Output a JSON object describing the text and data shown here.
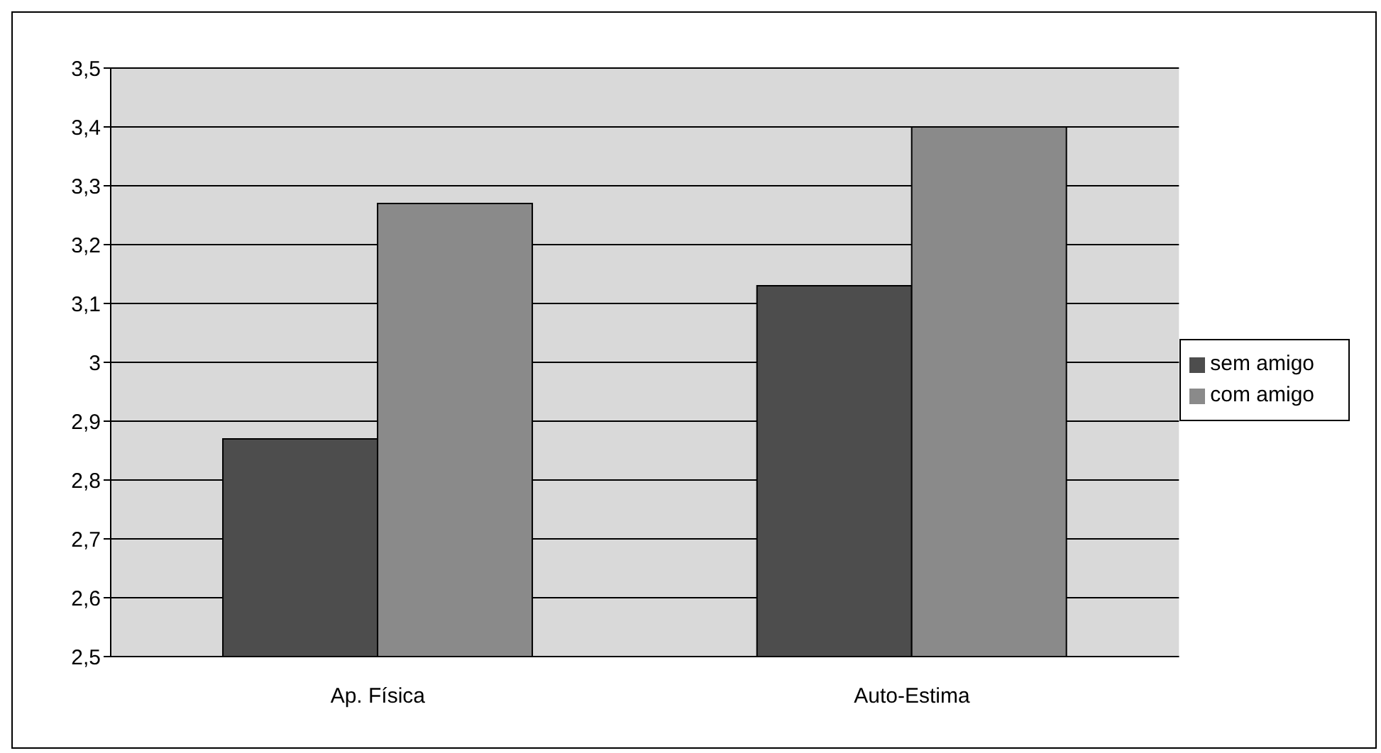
{
  "chart_data": {
    "type": "bar",
    "categories": [
      "Ap. Física",
      "Auto-Estima"
    ],
    "series": [
      {
        "name": "sem amigo",
        "color": "#4d4d4d",
        "values": [
          2.87,
          3.13
        ]
      },
      {
        "name": "com amigo",
        "color": "#8a8a8a",
        "values": [
          3.27,
          3.4
        ]
      }
    ],
    "ylim": [
      2.5,
      3.5
    ],
    "yticks": [
      {
        "value": 2.5,
        "label": "2,5"
      },
      {
        "value": 2.6,
        "label": "2,6"
      },
      {
        "value": 2.7,
        "label": "2,7"
      },
      {
        "value": 2.8,
        "label": "2,8"
      },
      {
        "value": 2.9,
        "label": "2,9"
      },
      3,
      {
        "value": 3.1,
        "label": "3,1"
      },
      {
        "value": 3.2,
        "label": "3,2"
      },
      {
        "value": 3.3,
        "label": "3,3"
      },
      {
        "value": 3.4,
        "label": "3,4"
      },
      {
        "value": 3.5,
        "label": "3,5"
      }
    ],
    "grid": "y",
    "legend": "right"
  }
}
